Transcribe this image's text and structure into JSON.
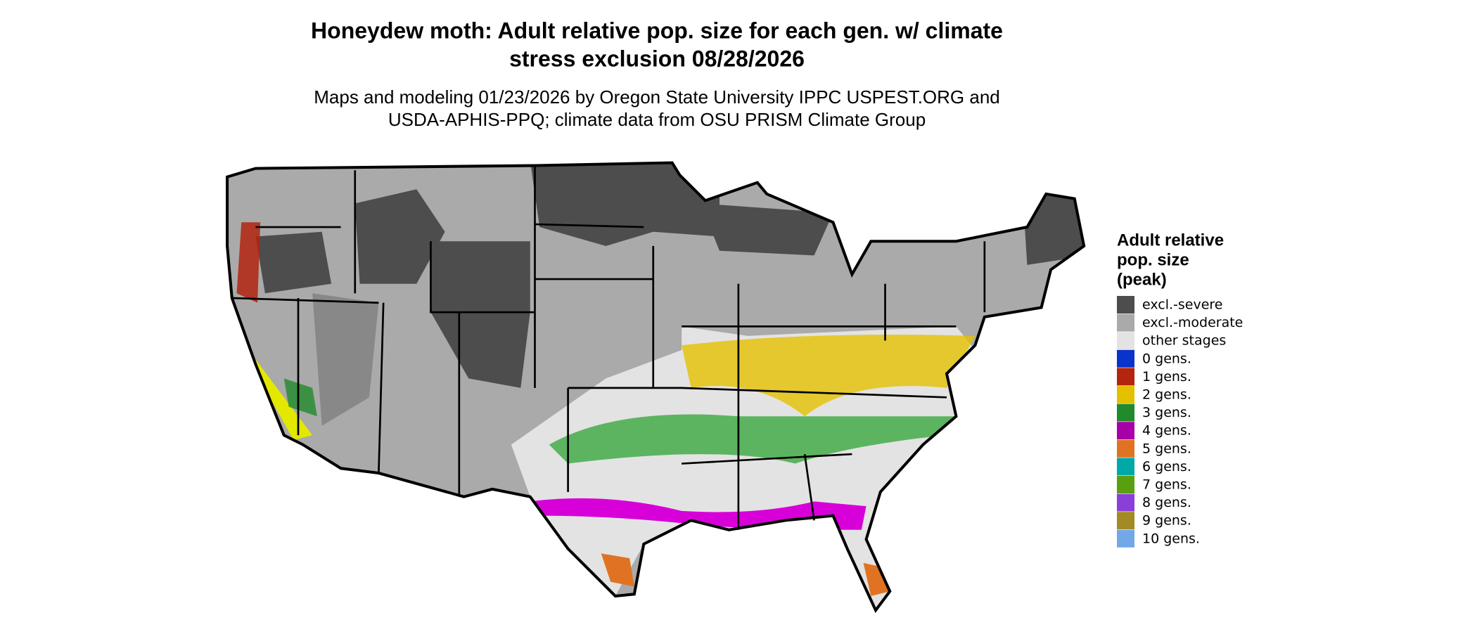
{
  "title": [
    "Honeydew moth: Adult relative pop. size for each gen. w/ climate",
    "stress exclusion 08/28/2026"
  ],
  "subtitle": [
    "Maps and modeling 01/23/2026 by Oregon State University IPPC USPEST.ORG and",
    "USDA-APHIS-PPQ; climate data from OSU PRISM Climate Group"
  ],
  "legend": {
    "title": [
      "Adult relative",
      "pop. size",
      "(peak)"
    ],
    "entries": [
      {
        "label": "excl.-severe",
        "color": "#4d4d4d"
      },
      {
        "label": "excl.-moderate",
        "color": "#aaaaaa"
      },
      {
        "label": "other stages",
        "color": "#e3e3e3"
      },
      {
        "label": "0 gens.",
        "color": "#0a33cc"
      },
      {
        "label": "1 gens.",
        "color": "#b3250f"
      },
      {
        "label": "2 gens.",
        "color": "#e3c000"
      },
      {
        "label": "3 gens.",
        "color": "#218a2a"
      },
      {
        "label": "4 gens.",
        "color": "#a800a8"
      },
      {
        "label": "5 gens.",
        "color": "#e07322"
      },
      {
        "label": "6 gens.",
        "color": "#00a8a8"
      },
      {
        "label": "7 gens.",
        "color": "#58a010"
      },
      {
        "label": "8 gens.",
        "color": "#8a40d6"
      },
      {
        "label": "9 gens.",
        "color": "#a38a22"
      },
      {
        "label": "10 gens.",
        "color": "#73a8e8"
      }
    ]
  }
}
